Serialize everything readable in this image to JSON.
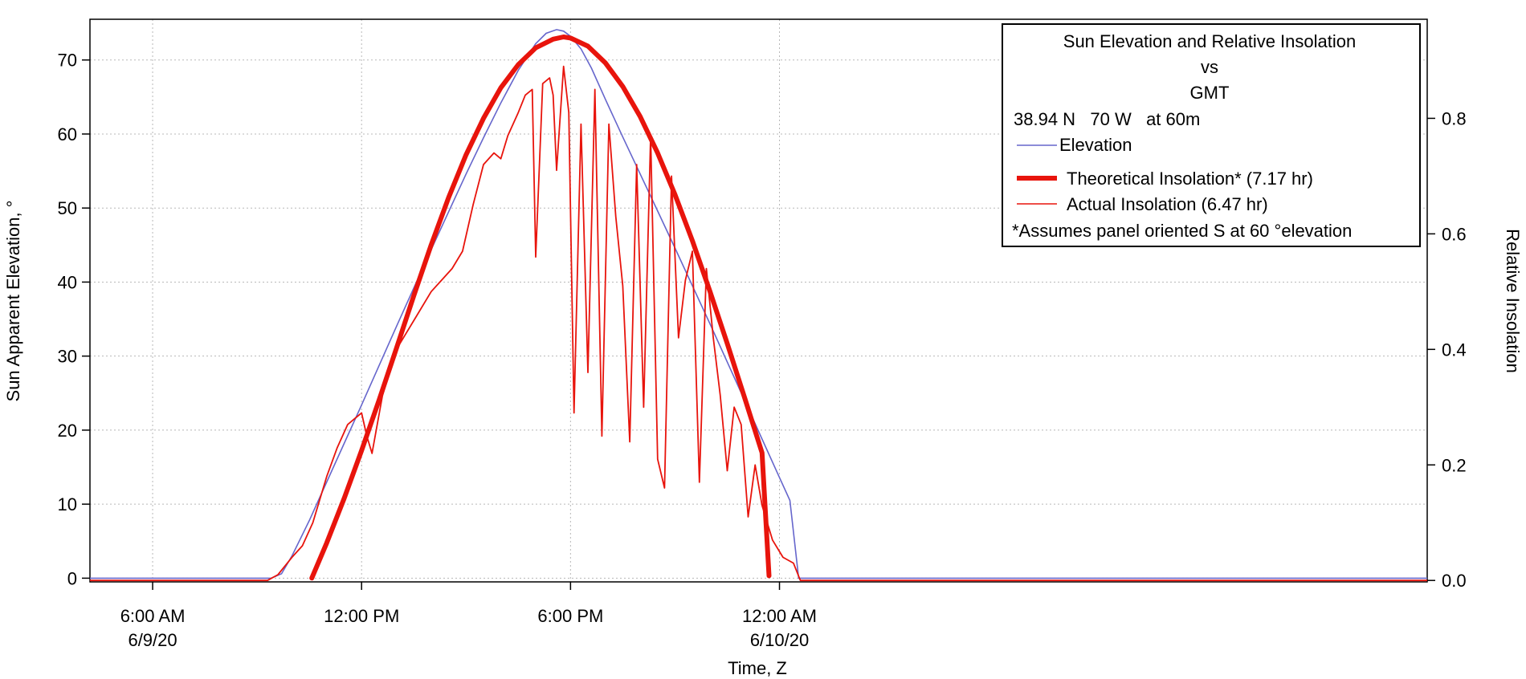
{
  "chart_data": {
    "type": "line",
    "xlabel": "Time, Z",
    "ylabel": "Sun Apparent Elevation, °",
    "y2label": "Relative Insolation",
    "xlim": [
      4.2,
      42.6
    ],
    "ylim": [
      -0.5,
      75.5
    ],
    "y2lim": [
      -0.0025,
      0.9715
    ],
    "grid": true,
    "x_ticks": [
      {
        "x": 6,
        "label": [
          "6:00 AM",
          "6/9/20"
        ]
      },
      {
        "x": 12,
        "label": [
          "12:00 PM"
        ]
      },
      {
        "x": 18,
        "label": [
          "6:00 PM"
        ]
      },
      {
        "x": 24,
        "label": [
          "12:00 AM",
          "6/10/20"
        ]
      }
    ],
    "y_ticks": [
      0,
      10,
      20,
      30,
      40,
      50,
      60,
      70
    ],
    "y2_ticks": [
      "0.0",
      "0.2",
      "0.4",
      "0.6",
      "0.8"
    ],
    "legend": {
      "position": "top-right",
      "title_lines": [
        "Sun Elevation and Relative Insolation",
        "vs",
        "GMT",
        "38.94 N   70 W   at 60m"
      ],
      "note": "*Assumes panel oriented S at 60 °elevation"
    },
    "series": [
      {
        "name": "Elevation",
        "axis": "left",
        "color": "#6666cc",
        "x": [
          4.2,
          9.4,
          9.7,
          10.0,
          10.5,
          11.0,
          11.5,
          12.0,
          12.5,
          13.0,
          13.5,
          14.0,
          14.5,
          15.0,
          15.5,
          16.0,
          16.5,
          17.0,
          17.3,
          17.6,
          17.8,
          18.0,
          18.3,
          18.6,
          19.0,
          19.5,
          20.0,
          20.5,
          21.0,
          21.5,
          22.0,
          22.5,
          23.0,
          23.5,
          24.0,
          24.3,
          24.55,
          42.6
        ],
        "y": [
          0,
          0,
          0.6,
          3.0,
          7.8,
          13.0,
          18.2,
          23.4,
          28.7,
          34.0,
          39.2,
          44.4,
          49.5,
          54.6,
          59.5,
          64.2,
          68.6,
          72.2,
          73.6,
          74.1,
          73.9,
          73.2,
          71.5,
          68.9,
          64.7,
          59.6,
          54.6,
          49.6,
          44.6,
          39.5,
          34.4,
          29.2,
          24.0,
          18.8,
          13.6,
          10.5,
          0,
          0
        ]
      },
      {
        "name": "Theoretical Insolation* (7.17 hr)",
        "axis": "right",
        "color": "#e8140c",
        "x": [
          10.57,
          11.0,
          11.5,
          12.0,
          12.5,
          13.0,
          13.5,
          14.0,
          14.5,
          15.0,
          15.5,
          16.0,
          16.5,
          17.0,
          17.5,
          17.8,
          18.0,
          18.5,
          19.0,
          19.5,
          20.0,
          20.5,
          21.0,
          21.5,
          22.0,
          22.5,
          23.0,
          23.5,
          23.7
        ],
        "y": [
          0.004,
          0.065,
          0.142,
          0.225,
          0.312,
          0.402,
          0.493,
          0.581,
          0.663,
          0.737,
          0.8,
          0.853,
          0.893,
          0.922,
          0.937,
          0.941,
          0.939,
          0.925,
          0.896,
          0.855,
          0.803,
          0.74,
          0.668,
          0.588,
          0.501,
          0.41,
          0.316,
          0.221,
          0.008
        ]
      },
      {
        "name": "Actual Insolation (6.47 hr)",
        "axis": "right",
        "color": "#e8140c",
        "x": [
          4.2,
          9.3,
          9.6,
          10.0,
          10.3,
          10.6,
          11.0,
          11.3,
          11.6,
          11.8,
          12.0,
          12.15,
          12.3,
          12.45,
          12.6,
          12.8,
          13.0,
          13.3,
          13.6,
          14.0,
          14.3,
          14.6,
          14.9,
          15.2,
          15.5,
          15.8,
          16.0,
          16.2,
          16.5,
          16.7,
          16.9,
          17.0,
          17.2,
          17.4,
          17.5,
          17.6,
          17.8,
          17.95,
          18.1,
          18.3,
          18.5,
          18.7,
          18.9,
          19.1,
          19.3,
          19.5,
          19.7,
          19.9,
          20.1,
          20.3,
          20.5,
          20.7,
          20.9,
          21.1,
          21.3,
          21.5,
          21.7,
          21.9,
          22.1,
          22.3,
          22.5,
          22.7,
          22.9,
          23.1,
          23.3,
          23.5,
          23.8,
          24.1,
          24.4,
          24.6,
          42.6
        ],
        "y": [
          0,
          0,
          0.01,
          0.04,
          0.06,
          0.1,
          0.18,
          0.23,
          0.27,
          0.28,
          0.29,
          0.25,
          0.22,
          0.27,
          0.32,
          0.36,
          0.4,
          0.43,
          0.46,
          0.5,
          0.52,
          0.54,
          0.57,
          0.65,
          0.72,
          0.74,
          0.73,
          0.77,
          0.81,
          0.84,
          0.85,
          0.56,
          0.86,
          0.87,
          0.84,
          0.71,
          0.89,
          0.81,
          0.29,
          0.79,
          0.36,
          0.85,
          0.25,
          0.79,
          0.63,
          0.51,
          0.24,
          0.72,
          0.3,
          0.77,
          0.21,
          0.16,
          0.7,
          0.42,
          0.52,
          0.57,
          0.17,
          0.54,
          0.42,
          0.32,
          0.19,
          0.3,
          0.27,
          0.11,
          0.2,
          0.13,
          0.07,
          0.04,
          0.03,
          0.0,
          0
        ]
      }
    ]
  }
}
